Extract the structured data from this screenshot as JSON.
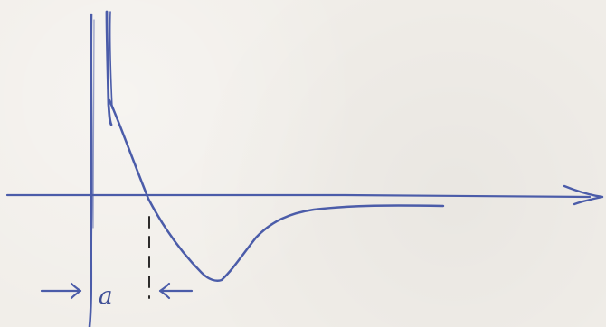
{
  "diagram": {
    "label_a": "a",
    "colors": {
      "ink": "#4b5ca9",
      "pencil": "#2d2b2a",
      "paper": "#f1eee9"
    }
  }
}
